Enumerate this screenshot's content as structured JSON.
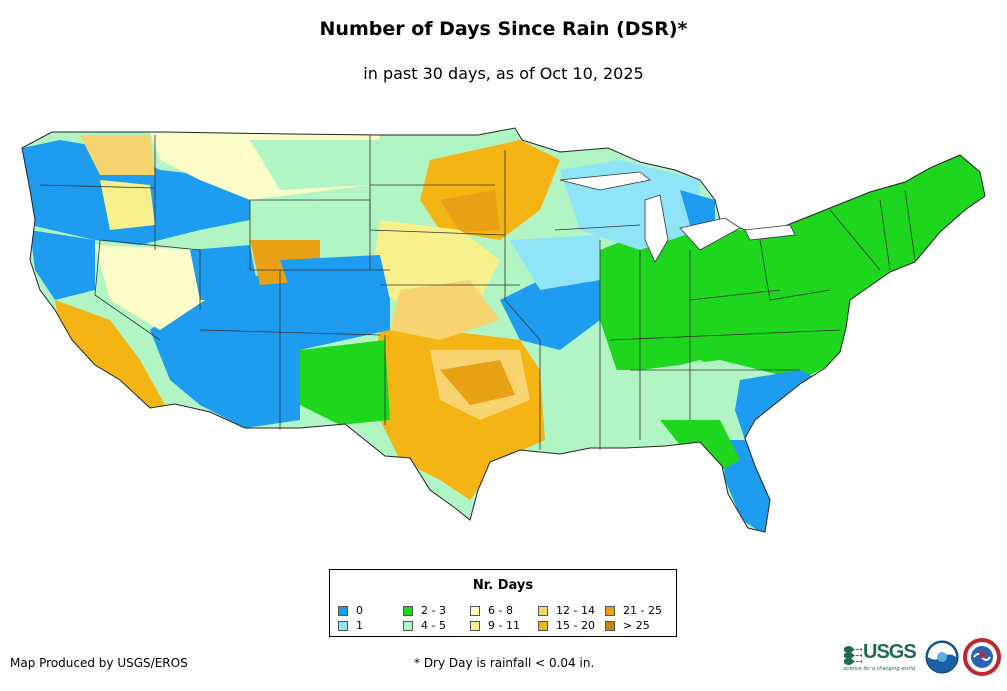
{
  "title": "Number of Days Since Rain (DSR)*",
  "subtitle": "in past 30 days, as of Oct 10, 2025",
  "legend": {
    "title": "Nr. Days",
    "items": [
      {
        "label": "0",
        "color": "#1e9cf0"
      },
      {
        "label": "1",
        "color": "#8fe4f8"
      },
      {
        "label": "2 - 3",
        "color": "#1ed61e"
      },
      {
        "label": "4 - 5",
        "color": "#b2f5c4"
      },
      {
        "label": "6 - 8",
        "color": "#fcfcc8"
      },
      {
        "label": "9 - 11",
        "color": "#f8f08c"
      },
      {
        "label": "12 - 14",
        "color": "#f8d470"
      },
      {
        "label": "15 - 20",
        "color": "#f4b414"
      },
      {
        "label": "21 - 25",
        "color": "#e8a014"
      },
      {
        "label": "> 25",
        "color": "#c88410"
      }
    ]
  },
  "credit": "Map Produced by USGS/EROS",
  "footnote": "* Dry Day is rainfall < 0.04 in.",
  "logos": {
    "usgs": "USGS",
    "usgs_tagline": "science for a changing world",
    "noaa": "noaa-logo",
    "nws": "nws-logo"
  }
}
